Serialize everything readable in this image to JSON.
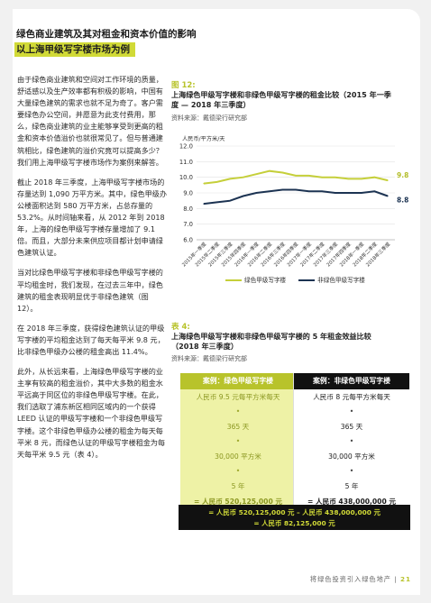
{
  "header": {
    "title": "绿色商业建筑及其对租金和资本价值的影响",
    "subtitle": "以上海甲级写字楼市场为例"
  },
  "left_column": {
    "paragraphs": [
      "由于绿色商业建筑和空间对工作环境的质量，舒适感以及生产效率都有积极的影响，中国有大量绿色建筑的需求也就不足为奇了。客户需要绿色办公空间，并愿意为此支付费用，那么，绿色商业建筑的业主能够享受到更高的租金和资本价值溢价也就很常见了。但与普通建筑相比，绿色建筑的溢价究竟可以提高多少？我们用上海甲级写字楼市场作为案例来解答。",
      "截止 2018 年三季度，上海甲级写字楼市场的存量达到 1,090 万平方米。其中，绿色甲级办公楼面积达到 580 万平方米，占总存量的 53.2%。从时间轴来看，从 2012 年到 2018 年，上海的绿色甲级写字楼存量增加了 9.1 倍。而且，大部分未来供应项目都计划申请绿色建筑认证。",
      "当对比绿色甲级写字楼和非绿色甲级写字楼的平均租金时，我们发现，在过去三年中，绿色建筑的租金表现明显优于非绿色建筑（图 12）。",
      "在 2018 年三季度，获得绿色建筑认证的甲级写字楼的平均租金达到了每天每平米 9.8 元，比非绿色甲级办公楼的租金高出 11.4%。",
      "此外，从长远来看，上海绿色甲级写字楼的业主享有较高的租金溢价，其中大多数的租金水平远高于同区位的非绿色甲级写字楼。在此，我们选取了浦东新区相同区域内的一个获得 LEED 认证的甲级写字楼和一个非绿色甲级写字楼。这个非绿色甲级办公楼的租金为每天每平米 8 元，而绿色认证的甲级写字楼租金为每天每平米 9.5 元（表 4）。"
    ]
  },
  "figure12": {
    "tag": "图 12:",
    "title": "上海绿色甲级写字楼和非绿色甲级写字楼的租金比较（2015 年一季度 — 2018 年三季度）",
    "source": "资料来源：戴德梁行研究部",
    "legend_green": "绿色甲级写字楼",
    "legend_other": "非绿色甲级写字楼"
  },
  "chart_data": {
    "type": "line",
    "ylabel": "人民币/平方米/天",
    "ylim": [
      6.0,
      12.0
    ],
    "yticks": [
      "12.0",
      "11.0",
      "10.0",
      "9.0",
      "8.0",
      "7.0",
      "6.0"
    ],
    "categories": [
      "2015年一季度",
      "2015年二季度",
      "2015年三季度",
      "2015年四季度",
      "2016年一季度",
      "2016年二季度",
      "2016年三季度",
      "2016年四季度",
      "2017年一季度",
      "2017年二季度",
      "2017年三季度",
      "2017年四季度",
      "2018年一季度",
      "2018年二季度",
      "2018年三季度"
    ],
    "series": [
      {
        "name": "绿色甲级写字楼",
        "color": "#c5cf3a",
        "end_label": "9.8",
        "values": [
          9.6,
          9.7,
          9.9,
          10.0,
          10.2,
          10.4,
          10.3,
          10.1,
          10.1,
          10.0,
          10.0,
          9.9,
          9.9,
          10.0,
          9.8
        ]
      },
      {
        "name": "非绿色甲级写字楼",
        "color": "#1c3352",
        "end_label": "8.8",
        "values": [
          8.3,
          8.4,
          8.5,
          8.8,
          9.0,
          9.1,
          9.2,
          9.2,
          9.1,
          9.1,
          9.0,
          9.0,
          9.0,
          9.1,
          8.8
        ]
      }
    ]
  },
  "table4": {
    "tag": "表 4:",
    "title": "上海绿色甲级写字楼和非绿色甲级写字楼的 5 年租金效益比较（2018 年三季度）",
    "source": "资料来源：戴德梁行研究部",
    "green_case": {
      "head": "案例：绿色甲级写字楼",
      "rent": "人民币 9.5 元每平方米每天",
      "days": "365 天",
      "area": "30,000 平方米",
      "years": "5 年",
      "total": "= 人民币 520,125,000 元"
    },
    "other_case": {
      "head": "案例：非绿色甲级写字楼",
      "rent": "人民币 8 元每平方米每天",
      "days": "365 天",
      "area": "30,000 平方米",
      "years": "5 年",
      "total": "= 人民币 438,000,000 元"
    },
    "dot": "•",
    "difference_line1": "= 人民币 520,125,000 元 – 人民币 438,000,000 元",
    "difference_line2": "= 人民币 82,125,000 元"
  },
  "footer": {
    "text": "将绿色投资引入绿色地产",
    "page_number": "21"
  }
}
